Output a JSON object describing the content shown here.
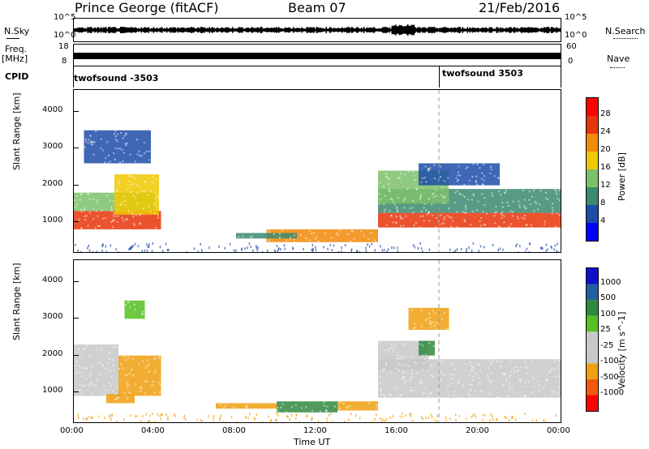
{
  "header": {
    "station": "Prince George (fitACF)",
    "beam": "Beam 07",
    "date": "21/Feb/2016"
  },
  "left_labels": {
    "nsky": "N.Sky",
    "freq_top": "Freq.",
    "freq_unit": "[MHz]",
    "cpid": "CPID"
  },
  "right_labels": {
    "nsearch": "N.Search",
    "nave": "Nave"
  },
  "strip_axes": {
    "nsky_ticks": [
      "10^5",
      "10^0"
    ],
    "freq_ticks": [
      "18",
      "8"
    ],
    "nave_ticks": [
      "60",
      "0"
    ]
  },
  "cpid": [
    {
      "label": "twofsound -3503",
      "start_time": "00:00"
    },
    {
      "label": "twofsound 3503",
      "start_time": "18:00"
    }
  ],
  "time_axis": {
    "ticks": [
      "00:00",
      "04:00",
      "08:00",
      "12:00",
      "16:00",
      "20:00",
      "00:00"
    ],
    "label": "Time UT"
  },
  "colors": {
    "power_scale": [
      "#0000ff",
      "#1d4ca8",
      "#3a8a6e",
      "#7bc16a",
      "#f0c800",
      "#f28a0a",
      "#e8350b",
      "#ff0000"
    ],
    "velocity_scale": [
      "#ff0000",
      "#f05a0a",
      "#f0a010",
      "#c8c8c8",
      "#c8c8c8",
      "#55c020",
      "#2f8a40",
      "#2160a0",
      "#1010cc"
    ],
    "ground_scatter": "#a0a0a0"
  },
  "chart_data": [
    {
      "type": "heatmap",
      "name": "power-panel",
      "ylabel": "Slant Range [km]",
      "xlabel": "",
      "ylim": [
        180,
        4600
      ],
      "xlim_hours": [
        0,
        24
      ],
      "y_ticks": [
        1000,
        2000,
        3000,
        4000
      ],
      "colorbar": {
        "label": "Power [dB]",
        "ticks": [
          4,
          8,
          12,
          16,
          20,
          24,
          28
        ],
        "range": [
          0,
          32
        ]
      },
      "regions": [
        {
          "t0": 0.0,
          "t1": 4.3,
          "r0": 800,
          "r1": 1300,
          "level": 26
        },
        {
          "t0": 0.0,
          "t1": 4.0,
          "r0": 1300,
          "r1": 1800,
          "level": 12
        },
        {
          "t0": 2.0,
          "t1": 4.2,
          "r0": 1200,
          "r1": 2300,
          "level": 18
        },
        {
          "t0": 0.5,
          "t1": 3.8,
          "r0": 2600,
          "r1": 3500,
          "level": 6
        },
        {
          "t0": 9.5,
          "t1": 15.0,
          "r0": 450,
          "r1": 800,
          "level": 20
        },
        {
          "t0": 8.0,
          "t1": 11.0,
          "r0": 550,
          "r1": 700,
          "level": 8
        },
        {
          "t0": 15.0,
          "t1": 24.0,
          "r0": 850,
          "r1": 1250,
          "level": 26
        },
        {
          "t0": 15.0,
          "t1": 24.0,
          "r0": 1250,
          "r1": 1900,
          "level": 11
        },
        {
          "t0": 15.0,
          "t1": 18.5,
          "r0": 1500,
          "r1": 2400,
          "level": 14
        },
        {
          "t0": 17.0,
          "t1": 21.0,
          "r0": 2000,
          "r1": 2600,
          "level": 7
        }
      ]
    },
    {
      "type": "heatmap",
      "name": "velocity-panel",
      "ylabel": "Slant Range [km]",
      "xlabel": "Time UT",
      "ylim": [
        180,
        4600
      ],
      "xlim_hours": [
        0,
        24
      ],
      "y_ticks": [
        1000,
        2000,
        3000,
        4000
      ],
      "colorbar": {
        "label": "Velocity [m s^-1]",
        "ticks": [
          1000,
          500,
          100,
          25,
          -25,
          -100,
          -500,
          -1000
        ]
      },
      "regions": [
        {
          "t0": 0.0,
          "t1": 2.2,
          "r0": 900,
          "r1": 2300,
          "value": 0
        },
        {
          "t0": 2.2,
          "t1": 4.3,
          "r0": 900,
          "r1": 2000,
          "value": -300
        },
        {
          "t0": 1.6,
          "t1": 3.0,
          "r0": 700,
          "r1": 950,
          "value": -150
        },
        {
          "t0": 2.5,
          "t1": 3.5,
          "r0": 3000,
          "r1": 3500,
          "value": 50
        },
        {
          "t0": 7.0,
          "t1": 10.0,
          "r0": 550,
          "r1": 700,
          "value": -150
        },
        {
          "t0": 10.0,
          "t1": 13.0,
          "r0": 450,
          "r1": 750,
          "value": 150
        },
        {
          "t0": 13.0,
          "t1": 15.0,
          "r0": 500,
          "r1": 750,
          "value": -150
        },
        {
          "t0": 15.0,
          "t1": 24.0,
          "r0": 850,
          "r1": 1900,
          "value": 0
        },
        {
          "t0": 15.0,
          "t1": 17.5,
          "r0": 1600,
          "r1": 2400,
          "value": 0
        },
        {
          "t0": 17.0,
          "t1": 17.8,
          "r0": 2000,
          "r1": 2400,
          "value": 200
        },
        {
          "t0": 16.5,
          "t1": 18.5,
          "r0": 2700,
          "r1": 3300,
          "value": -200
        }
      ]
    }
  ]
}
